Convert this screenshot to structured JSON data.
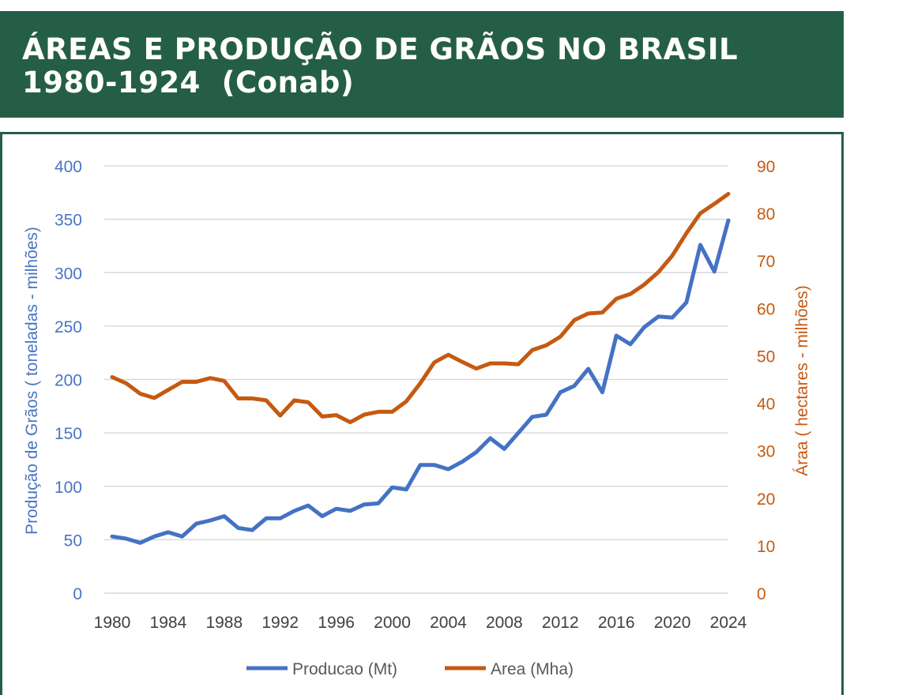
{
  "header": {
    "title_line1": "ÁREAS E PRODUÇÃO DE GRÃOS NO BRASIL",
    "title_line2": "1980-1924  (Conab)"
  },
  "colors": {
    "banner": "#255e46",
    "producao": "#4472c4",
    "area": "#c55a11",
    "grid": "#d9d9d9"
  },
  "chart_data": {
    "type": "line",
    "title": "ÁREAS E PRODUÇÃO DE GRÃOS NO BRASIL 1980-1924  (Conab)",
    "xlabel": "",
    "ylabel_left": "Produção de Grãos ( toneladas - milhões)",
    "ylabel_right": "Áraa ( hectares - milhões)",
    "x": [
      1980,
      1981,
      1982,
      1983,
      1984,
      1985,
      1986,
      1987,
      1988,
      1989,
      1990,
      1991,
      1992,
      1993,
      1994,
      1995,
      1996,
      1997,
      1998,
      1999,
      2000,
      2001,
      2002,
      2003,
      2004,
      2005,
      2006,
      2007,
      2008,
      2009,
      2010,
      2011,
      2012,
      2013,
      2014,
      2015,
      2016,
      2017,
      2018,
      2019,
      2020,
      2021,
      2022,
      2023,
      2024
    ],
    "xticks": [
      1980,
      1984,
      1988,
      1992,
      1996,
      2000,
      2004,
      2008,
      2012,
      2016,
      2020,
      2024
    ],
    "ylim_left": [
      0,
      400
    ],
    "yticks_left": [
      0,
      50,
      100,
      150,
      200,
      250,
      300,
      350,
      400
    ],
    "ylim_right": [
      0,
      90
    ],
    "yticks_right": [
      0,
      10,
      20,
      30,
      40,
      50,
      60,
      70,
      80,
      90
    ],
    "grid": true,
    "legend_position": "bottom",
    "series": [
      {
        "name": "Producao (Mt)",
        "axis": "left",
        "color": "#4472c4",
        "values": [
          53,
          51,
          47,
          53,
          57,
          53,
          65,
          68,
          72,
          61,
          59,
          70,
          70,
          77,
          82,
          72,
          79,
          77,
          83,
          84,
          99,
          97,
          120,
          120,
          116,
          123,
          132,
          145,
          135,
          150,
          165,
          167,
          188,
          194,
          210,
          188,
          241,
          233,
          249,
          259,
          258,
          272,
          326,
          301,
          349
        ]
      },
      {
        "name": "Area (Mha)",
        "axis": "right",
        "color": "#c55a11",
        "values": [
          45.5,
          44.2,
          42,
          41.1,
          42.8,
          44.5,
          44.5,
          45.3,
          44.7,
          41,
          41,
          40.6,
          37.4,
          40.6,
          40.2,
          37.2,
          37.5,
          36,
          37.6,
          38.2,
          38.2,
          40.4,
          44.2,
          48.6,
          50.2,
          48.7,
          47.3,
          48.4,
          48.4,
          48.2,
          51.2,
          52.2,
          54,
          57.5,
          58.9,
          59.1,
          62,
          63,
          65,
          67.6,
          71.1,
          75.8,
          80,
          82,
          84.1
        ]
      }
    ]
  }
}
